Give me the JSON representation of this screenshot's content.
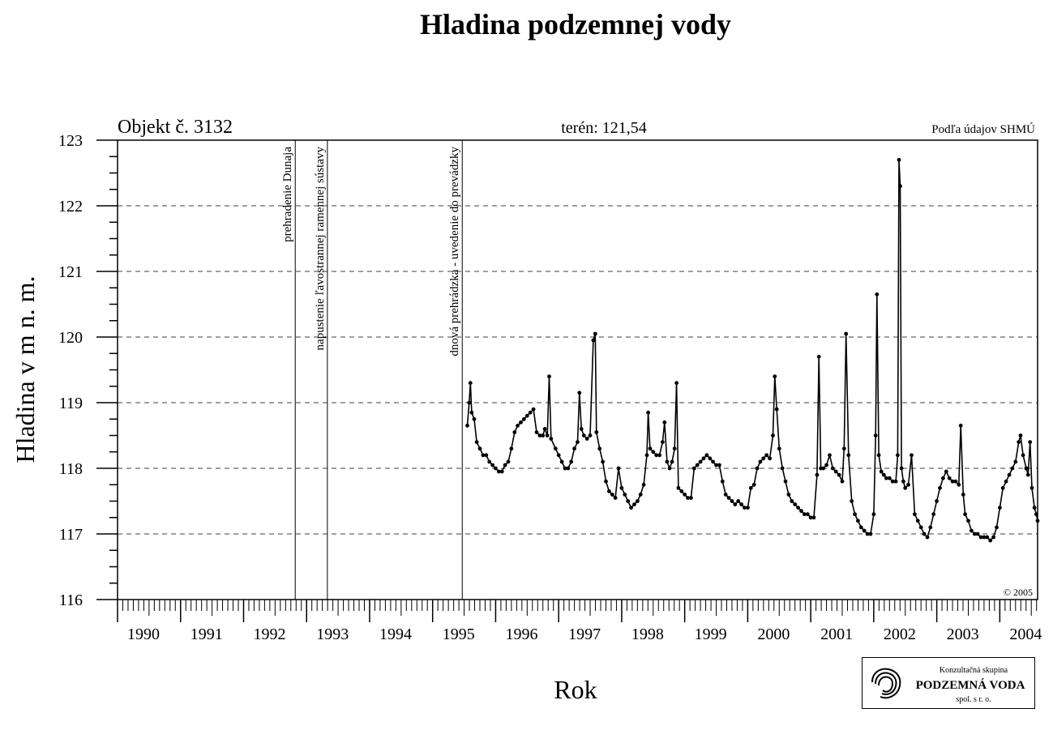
{
  "chart_data": {
    "type": "scatter",
    "title": "Hladina podzemnej vody",
    "object_label": "Objekt č.  3132",
    "terrain_label": "terén: 121,54",
    "source_label": "Podľa údajov SHMÚ",
    "copyright": "© 2005",
    "xlabel": "Rok",
    "ylabel": "Hladina v m n. m.",
    "xlim": [
      1990,
      2004.6
    ],
    "ylim": [
      116,
      123
    ],
    "x_ticks": [
      "1990",
      "1991",
      "1992",
      "1993",
      "1994",
      "1995",
      "1996",
      "1997",
      "1998",
      "1999",
      "2000",
      "2001",
      "2002",
      "2003",
      "2004"
    ],
    "y_ticks": [
      "116",
      "117",
      "118",
      "119",
      "120",
      "121",
      "122",
      "123"
    ],
    "grid": "horizontal dashed",
    "events": [
      {
        "x": 1992.82,
        "label": "prehradenie Dunaja"
      },
      {
        "x": 1993.33,
        "label": "napustenie ľavostrannej ramennej sústavy"
      },
      {
        "x": 1995.47,
        "label": "dnová prehrádzka - uvedenie do prevádzky"
      }
    ],
    "series": [
      {
        "values": [
          [
            1995.55,
            118.65
          ],
          [
            1995.58,
            119.0
          ],
          [
            1995.6,
            119.3
          ],
          [
            1995.62,
            118.85
          ],
          [
            1995.66,
            118.75
          ],
          [
            1995.7,
            118.4
          ],
          [
            1995.75,
            118.3
          ],
          [
            1995.8,
            118.2
          ],
          [
            1995.85,
            118.2
          ],
          [
            1995.9,
            118.1
          ],
          [
            1995.95,
            118.05
          ],
          [
            1996.0,
            118.0
          ],
          [
            1996.05,
            117.95
          ],
          [
            1996.1,
            117.95
          ],
          [
            1996.15,
            118.05
          ],
          [
            1996.2,
            118.1
          ],
          [
            1996.25,
            118.3
          ],
          [
            1996.3,
            118.55
          ],
          [
            1996.35,
            118.65
          ],
          [
            1996.4,
            118.7
          ],
          [
            1996.45,
            118.75
          ],
          [
            1996.5,
            118.8
          ],
          [
            1996.55,
            118.85
          ],
          [
            1996.6,
            118.9
          ],
          [
            1996.65,
            118.55
          ],
          [
            1996.7,
            118.5
          ],
          [
            1996.75,
            118.5
          ],
          [
            1996.78,
            118.6
          ],
          [
            1996.82,
            118.5
          ],
          [
            1996.85,
            119.4
          ],
          [
            1996.88,
            118.45
          ],
          [
            1996.95,
            118.3
          ],
          [
            1997.0,
            118.2
          ],
          [
            1997.05,
            118.1
          ],
          [
            1997.1,
            118.0
          ],
          [
            1997.15,
            118.0
          ],
          [
            1997.2,
            118.1
          ],
          [
            1997.25,
            118.3
          ],
          [
            1997.3,
            118.4
          ],
          [
            1997.33,
            119.15
          ],
          [
            1997.36,
            118.6
          ],
          [
            1997.4,
            118.5
          ],
          [
            1997.45,
            118.45
          ],
          [
            1997.5,
            118.5
          ],
          [
            1997.55,
            119.95
          ],
          [
            1997.58,
            120.05
          ],
          [
            1997.6,
            118.55
          ],
          [
            1997.65,
            118.3
          ],
          [
            1997.7,
            118.1
          ],
          [
            1997.75,
            117.8
          ],
          [
            1997.8,
            117.65
          ],
          [
            1997.85,
            117.6
          ],
          [
            1997.9,
            117.55
          ],
          [
            1997.95,
            118.0
          ],
          [
            1998.0,
            117.7
          ],
          [
            1998.05,
            117.6
          ],
          [
            1998.1,
            117.5
          ],
          [
            1998.15,
            117.4
          ],
          [
            1998.2,
            117.45
          ],
          [
            1998.25,
            117.5
          ],
          [
            1998.3,
            117.6
          ],
          [
            1998.35,
            117.75
          ],
          [
            1998.4,
            118.2
          ],
          [
            1998.42,
            118.85
          ],
          [
            1998.45,
            118.3
          ],
          [
            1998.5,
            118.25
          ],
          [
            1998.55,
            118.2
          ],
          [
            1998.6,
            118.2
          ],
          [
            1998.65,
            118.4
          ],
          [
            1998.68,
            118.7
          ],
          [
            1998.72,
            118.1
          ],
          [
            1998.76,
            118.0
          ],
          [
            1998.8,
            118.1
          ],
          [
            1998.84,
            118.3
          ],
          [
            1998.87,
            119.3
          ],
          [
            1998.9,
            117.7
          ],
          [
            1998.95,
            117.65
          ],
          [
            1999.0,
            117.6
          ],
          [
            1999.05,
            117.55
          ],
          [
            1999.1,
            117.55
          ],
          [
            1999.15,
            118.0
          ],
          [
            1999.2,
            118.05
          ],
          [
            1999.25,
            118.1
          ],
          [
            1999.3,
            118.15
          ],
          [
            1999.35,
            118.2
          ],
          [
            1999.4,
            118.15
          ],
          [
            1999.45,
            118.1
          ],
          [
            1999.5,
            118.05
          ],
          [
            1999.55,
            118.05
          ],
          [
            1999.6,
            117.8
          ],
          [
            1999.65,
            117.6
          ],
          [
            1999.7,
            117.55
          ],
          [
            1999.75,
            117.5
          ],
          [
            1999.8,
            117.45
          ],
          [
            1999.85,
            117.5
          ],
          [
            1999.9,
            117.45
          ],
          [
            1999.95,
            117.4
          ],
          [
            2000.0,
            117.4
          ],
          [
            2000.05,
            117.7
          ],
          [
            2000.1,
            117.75
          ],
          [
            2000.15,
            118.0
          ],
          [
            2000.2,
            118.1
          ],
          [
            2000.25,
            118.15
          ],
          [
            2000.3,
            118.2
          ],
          [
            2000.35,
            118.15
          ],
          [
            2000.4,
            118.5
          ],
          [
            2000.43,
            119.4
          ],
          [
            2000.46,
            118.9
          ],
          [
            2000.5,
            118.3
          ],
          [
            2000.55,
            118.0
          ],
          [
            2000.6,
            117.8
          ],
          [
            2000.65,
            117.6
          ],
          [
            2000.7,
            117.5
          ],
          [
            2000.75,
            117.45
          ],
          [
            2000.8,
            117.4
          ],
          [
            2000.85,
            117.35
          ],
          [
            2000.9,
            117.3
          ],
          [
            2000.95,
            117.3
          ],
          [
            2001.0,
            117.25
          ],
          [
            2001.05,
            117.25
          ],
          [
            2001.1,
            117.9
          ],
          [
            2001.13,
            119.7
          ],
          [
            2001.16,
            118.0
          ],
          [
            2001.2,
            118.0
          ],
          [
            2001.25,
            118.05
          ],
          [
            2001.3,
            118.2
          ],
          [
            2001.35,
            118.0
          ],
          [
            2001.4,
            117.95
          ],
          [
            2001.45,
            117.9
          ],
          [
            2001.5,
            117.8
          ],
          [
            2001.53,
            118.3
          ],
          [
            2001.56,
            120.05
          ],
          [
            2001.6,
            118.2
          ],
          [
            2001.65,
            117.5
          ],
          [
            2001.7,
            117.3
          ],
          [
            2001.75,
            117.2
          ],
          [
            2001.8,
            117.1
          ],
          [
            2001.85,
            117.05
          ],
          [
            2001.9,
            117.0
          ],
          [
            2001.95,
            117.0
          ],
          [
            2002.0,
            117.3
          ],
          [
            2002.03,
            118.5
          ],
          [
            2002.05,
            120.65
          ],
          [
            2002.08,
            118.2
          ],
          [
            2002.12,
            117.95
          ],
          [
            2002.16,
            117.9
          ],
          [
            2002.2,
            117.85
          ],
          [
            2002.25,
            117.85
          ],
          [
            2002.3,
            117.8
          ],
          [
            2002.35,
            117.8
          ],
          [
            2002.38,
            118.2
          ],
          [
            2002.4,
            122.7
          ],
          [
            2002.42,
            122.3
          ],
          [
            2002.44,
            118.0
          ],
          [
            2002.47,
            117.8
          ],
          [
            2002.5,
            117.7
          ],
          [
            2002.55,
            117.75
          ],
          [
            2002.6,
            118.2
          ],
          [
            2002.65,
            117.3
          ],
          [
            2002.7,
            117.2
          ],
          [
            2002.75,
            117.1
          ],
          [
            2002.8,
            117.0
          ],
          [
            2002.85,
            116.95
          ],
          [
            2002.9,
            117.1
          ],
          [
            2002.95,
            117.3
          ],
          [
            2003.0,
            117.5
          ],
          [
            2003.05,
            117.7
          ],
          [
            2003.1,
            117.85
          ],
          [
            2003.15,
            117.95
          ],
          [
            2003.2,
            117.85
          ],
          [
            2003.25,
            117.8
          ],
          [
            2003.3,
            117.8
          ],
          [
            2003.35,
            117.75
          ],
          [
            2003.38,
            118.65
          ],
          [
            2003.42,
            117.6
          ],
          [
            2003.45,
            117.3
          ],
          [
            2003.5,
            117.2
          ],
          [
            2003.55,
            117.05
          ],
          [
            2003.6,
            117.0
          ],
          [
            2003.65,
            117.0
          ],
          [
            2003.7,
            116.95
          ],
          [
            2003.75,
            116.95
          ],
          [
            2003.8,
            116.95
          ],
          [
            2003.85,
            116.9
          ],
          [
            2003.9,
            116.95
          ],
          [
            2003.95,
            117.1
          ],
          [
            2004.0,
            117.4
          ],
          [
            2004.05,
            117.7
          ],
          [
            2004.1,
            117.8
          ],
          [
            2004.15,
            117.9
          ],
          [
            2004.2,
            118.0
          ],
          [
            2004.25,
            118.1
          ],
          [
            2004.3,
            118.4
          ],
          [
            2004.33,
            118.5
          ],
          [
            2004.37,
            118.2
          ],
          [
            2004.42,
            118.0
          ],
          [
            2004.45,
            117.9
          ],
          [
            2004.48,
            118.4
          ],
          [
            2004.51,
            117.7
          ],
          [
            2004.55,
            117.4
          ],
          [
            2004.58,
            117.3
          ],
          [
            2004.6,
            117.2
          ]
        ]
      }
    ]
  },
  "logo": {
    "line1": "Konzultačná skupina",
    "line2": "PODZEMNÁ VODA",
    "line3": "spol. s  r.  o."
  }
}
